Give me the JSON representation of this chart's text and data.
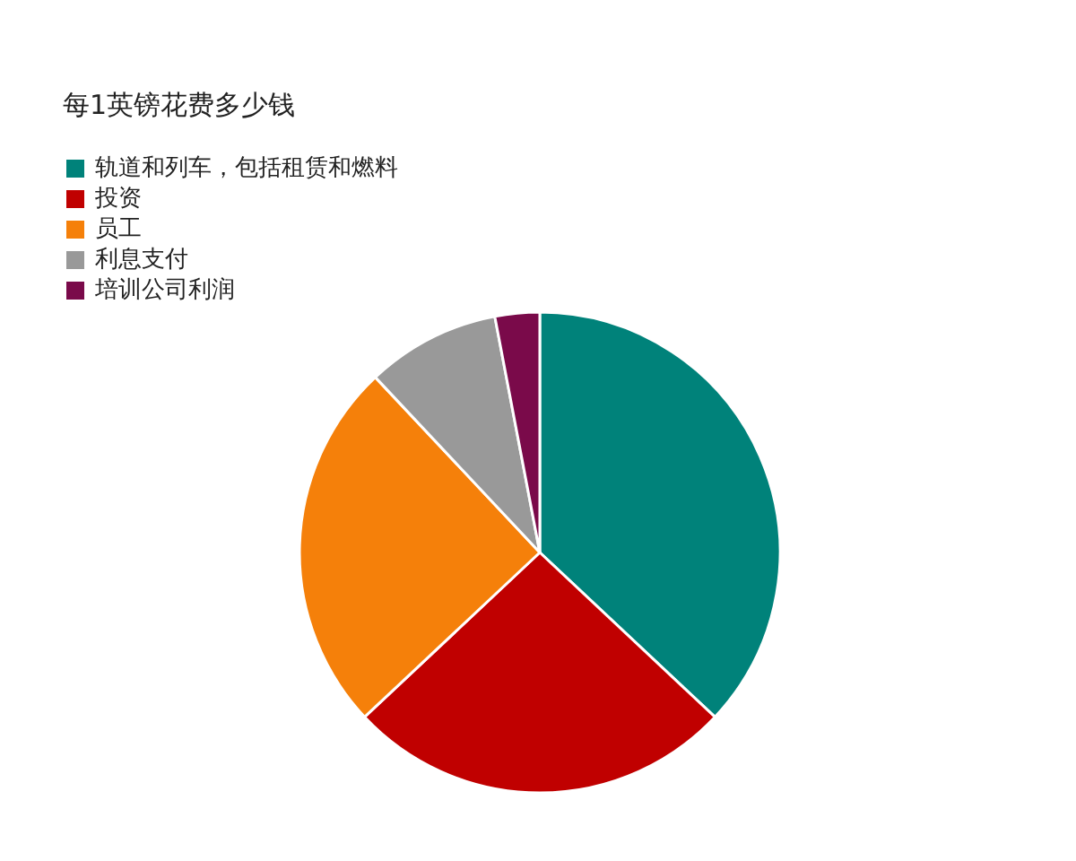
{
  "chart_data": {
    "type": "pie",
    "title": "每1英镑花费多少钱",
    "categories": [
      "轨道和列车，包括租赁和燃料",
      "投资",
      "员工",
      "利息支付",
      "培训公司利润"
    ],
    "values": [
      37,
      26,
      25,
      9,
      3
    ],
    "colors": [
      "#00827a",
      "#c00000",
      "#f5800a",
      "#999999",
      "#7a0a4a"
    ],
    "legend": "top left"
  }
}
